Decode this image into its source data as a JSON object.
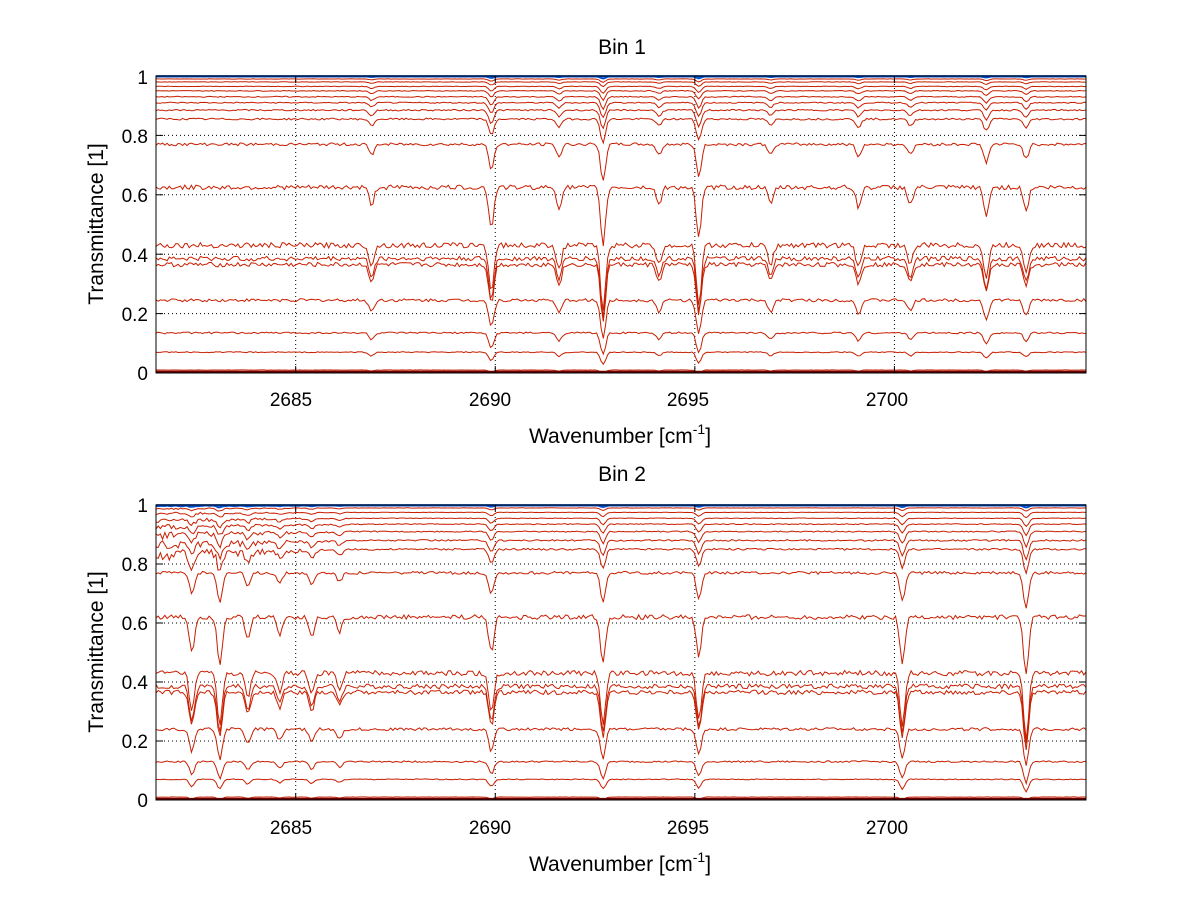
{
  "chart_data": [
    {
      "type": "line",
      "title": "Bin 1",
      "xlabel_main": "Wavenumber [cm",
      "xlabel_sup": "-1",
      "xlabel_close": "]",
      "ylabel": "Transmittance [1]",
      "xlim": [
        2681.5,
        2704.8
      ],
      "ylim": [
        0,
        1
      ],
      "grid": true,
      "xticks": [
        2685,
        2690,
        2695,
        2700
      ],
      "xtick_labels": [
        "2685",
        "2690",
        "2695",
        "2700"
      ],
      "yticks": [
        0,
        0.2,
        0.4,
        0.6,
        0.8,
        1
      ],
      "ytick_labels": [
        "0",
        "0.2",
        "0.4",
        "0.6",
        "0.8",
        "1"
      ],
      "line_color": "#c81e00",
      "top_colors": [
        "#0050d0",
        "#1ea0f0",
        "#f0c000",
        "#ff8000"
      ],
      "baselines": [
        0.998,
        0.99,
        0.98,
        0.965,
        0.95,
        0.93,
        0.91,
        0.885,
        0.855,
        0.77,
        0.625,
        0.43,
        0.385,
        0.365,
        0.245,
        0.135,
        0.07,
        0.01,
        0.005
      ],
      "absorption_lines": [
        {
          "x": 2686.9,
          "depth": 0.3
        },
        {
          "x": 2689.9,
          "depth": 0.7
        },
        {
          "x": 2691.6,
          "depth": 0.35
        },
        {
          "x": 2692.7,
          "depth": 1.0
        },
        {
          "x": 2694.1,
          "depth": 0.3
        },
        {
          "x": 2695.1,
          "depth": 0.9
        },
        {
          "x": 2696.9,
          "depth": 0.3
        },
        {
          "x": 2699.1,
          "depth": 0.35
        },
        {
          "x": 2700.4,
          "depth": 0.3
        },
        {
          "x": 2702.3,
          "depth": 0.5
        },
        {
          "x": 2703.3,
          "depth": 0.4
        }
      ]
    },
    {
      "type": "line",
      "title": "Bin 2",
      "xlabel_main": "Wavenumber [cm",
      "xlabel_sup": "-1",
      "xlabel_close": "]",
      "ylabel": "Transmittance [1]",
      "xlim": [
        2681.5,
        2704.8
      ],
      "ylim": [
        0,
        1
      ],
      "grid": true,
      "xticks": [
        2685,
        2690,
        2695,
        2700
      ],
      "xtick_labels": [
        "2685",
        "2690",
        "2695",
        "2700"
      ],
      "yticks": [
        0,
        0.2,
        0.4,
        0.6,
        0.8,
        1
      ],
      "ytick_labels": [
        "0",
        "0.2",
        "0.4",
        "0.6",
        "0.8",
        "1"
      ],
      "line_color": "#c81e00",
      "top_colors": [
        "#0050d0",
        "#1ea0f0",
        "#f0c000",
        "#ff8000"
      ],
      "baselines": [
        0.998,
        0.99,
        0.975,
        0.955,
        0.935,
        0.91,
        0.88,
        0.85,
        0.77,
        0.62,
        0.43,
        0.385,
        0.365,
        0.24,
        0.13,
        0.07,
        0.01,
        0.005
      ],
      "absorption_lines": [
        {
          "x": 2682.4,
          "depth": 0.6
        },
        {
          "x": 2683.1,
          "depth": 0.8
        },
        {
          "x": 2683.8,
          "depth": 0.4
        },
        {
          "x": 2684.6,
          "depth": 0.3
        },
        {
          "x": 2685.4,
          "depth": 0.35
        },
        {
          "x": 2686.1,
          "depth": 0.25
        },
        {
          "x": 2689.9,
          "depth": 0.6
        },
        {
          "x": 2692.7,
          "depth": 0.8
        },
        {
          "x": 2695.1,
          "depth": 0.7
        },
        {
          "x": 2700.2,
          "depth": 0.8
        },
        {
          "x": 2703.3,
          "depth": 1.0
        }
      ]
    }
  ]
}
